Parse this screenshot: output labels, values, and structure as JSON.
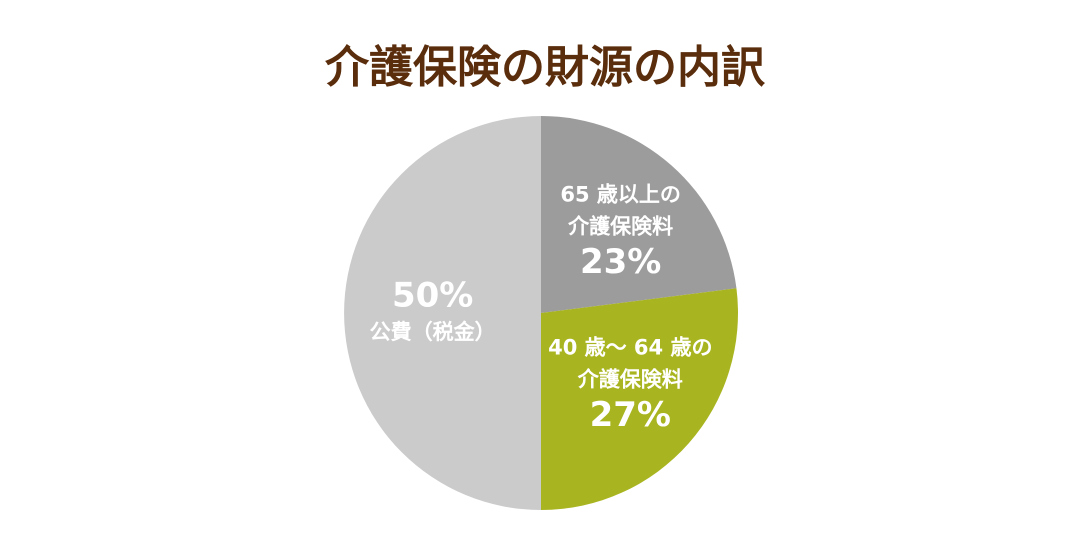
{
  "chart_data": {
    "type": "pie",
    "title": "介護保険の財源の内訳",
    "categories": [
      [
        "65 歳以上の",
        "介護保険料"
      ],
      [
        "40 歳～ 64 歳の",
        "介護保険料"
      ],
      [
        "公費（税金）"
      ]
    ],
    "values": [
      23,
      27,
      50
    ],
    "value_labels": [
      "23%",
      "27%",
      "50%"
    ],
    "colors": [
      "#9c9c9c",
      "#a9b520",
      "#cbcbcb"
    ]
  }
}
